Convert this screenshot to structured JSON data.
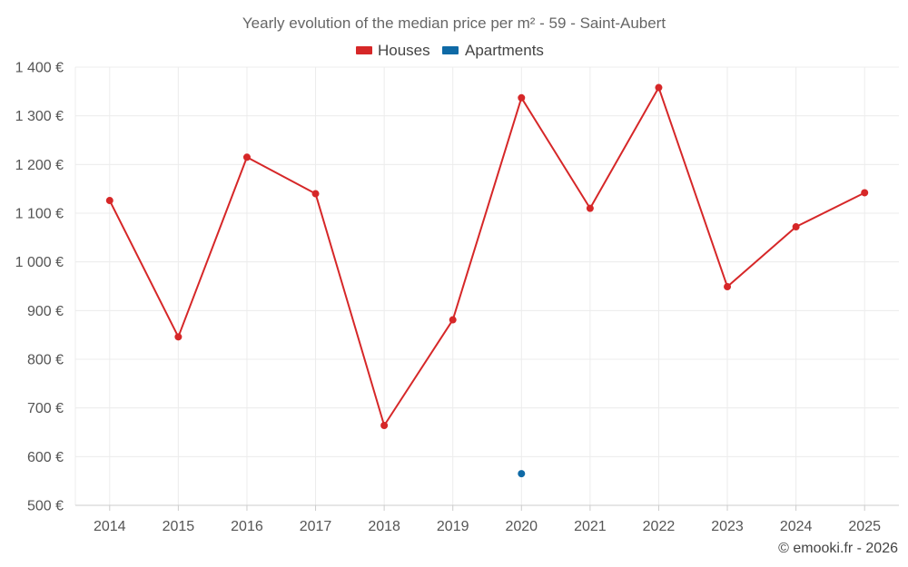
{
  "chart_data": {
    "type": "line",
    "title": "Yearly evolution of the median price per m² - 59 - Saint-Aubert",
    "categories": [
      "2014",
      "2015",
      "2016",
      "2017",
      "2018",
      "2019",
      "2020",
      "2021",
      "2022",
      "2023",
      "2024",
      "2025"
    ],
    "series": [
      {
        "name": "Houses",
        "color": "#d62728",
        "values": [
          1126,
          846,
          1215,
          1140,
          664,
          881,
          1337,
          1110,
          1358,
          949,
          1072,
          1142
        ]
      },
      {
        "name": "Apartments",
        "color": "#0f6aa6",
        "values": [
          null,
          null,
          null,
          null,
          null,
          null,
          565,
          null,
          null,
          null,
          null,
          null
        ]
      }
    ],
    "ylim": [
      500,
      1400
    ],
    "yticks": [
      500,
      600,
      700,
      800,
      900,
      1000,
      1100,
      1200,
      1300,
      1400
    ],
    "ytick_labels": [
      "500 €",
      "600 €",
      "700 €",
      "800 €",
      "900 €",
      "1 000 €",
      "1 100 €",
      "1 200 €",
      "1 300 €",
      "1 400 €"
    ],
    "xlabel": "",
    "ylabel": "",
    "grid": true,
    "legend_position": "top-center"
  },
  "credit": "© emooki.fr - 2026"
}
